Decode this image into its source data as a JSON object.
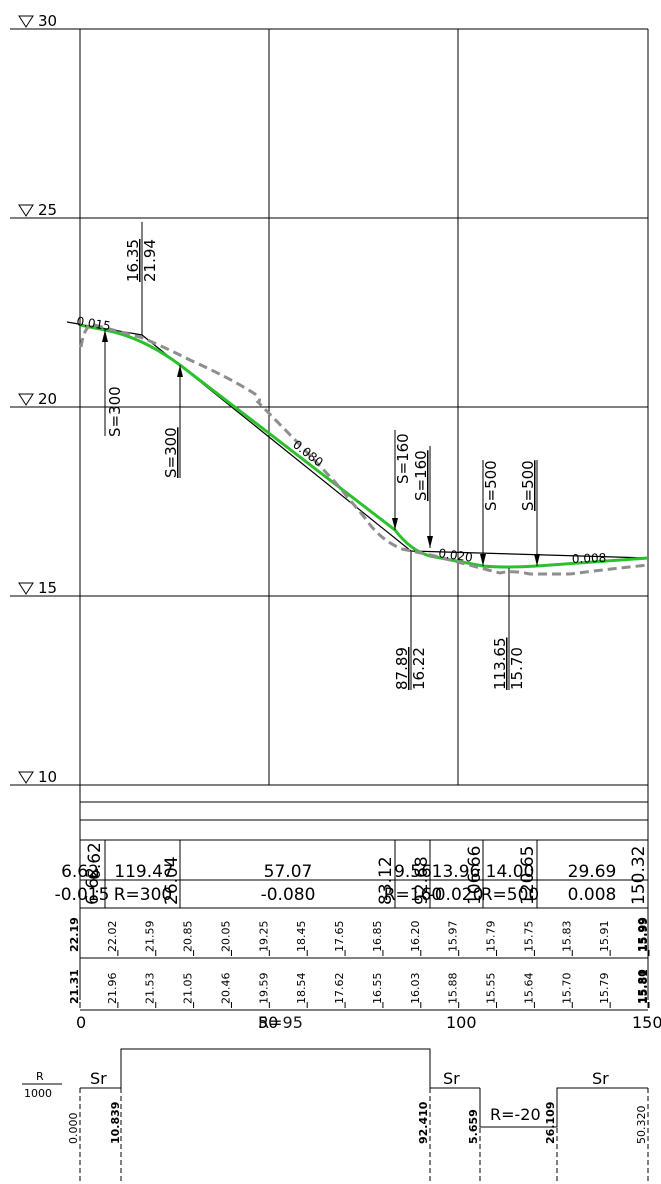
{
  "colors": {
    "design_line": "#2cc12c",
    "ground_line": "#8e8e8e",
    "ink": "#000000",
    "background": "#ffffff"
  },
  "elevation_axis": {
    "labels": [
      "30",
      "25",
      "20",
      "15",
      "10"
    ]
  },
  "grades": [
    {
      "id": "g1",
      "text": "0.015"
    },
    {
      "id": "g2",
      "text": "0.080"
    },
    {
      "id": "g3",
      "text": "0.020"
    },
    {
      "id": "g4",
      "text": "0.008"
    }
  ],
  "vertical_curve_labels": [
    {
      "id": "vc1",
      "text": "S=300"
    },
    {
      "id": "vc2",
      "text": "S=300"
    },
    {
      "id": "vc3",
      "text": "S=160"
    },
    {
      "id": "vc4",
      "text": "S=160"
    },
    {
      "id": "vc5",
      "text": "S=500"
    },
    {
      "id": "vc6",
      "text": "S=500"
    }
  ],
  "pvi_labels": [
    {
      "id": "pvi1",
      "station": "16.35",
      "elevation": "21.94"
    },
    {
      "id": "pvi2",
      "station": "87.89",
      "elevation": "16.22"
    },
    {
      "id": "pvi3",
      "station": "113.65",
      "elevation": "15.70"
    }
  ],
  "band_grades": {
    "vertical_texts": [
      "6.62",
      "6.62",
      "26.04",
      "83.12",
      "92.68",
      "106.66",
      "120.65",
      "150.32"
    ],
    "top_texts": [
      "6.62",
      "119.47",
      "57.07",
      "9.56",
      "13.96",
      "14.00",
      "29.69"
    ],
    "bottom_texts": [
      "-0.015",
      "R=300",
      "-0.080",
      "R=160",
      "-0.020",
      "R=500",
      "0.008"
    ]
  },
  "design_elevations": [
    "22.19",
    "22.02",
    "21.59",
    "20.85",
    "20.05",
    "19.25",
    "18.45",
    "17.65",
    "16.85",
    "16.20",
    "15.97",
    "15.79",
    "15.75",
    "15.83",
    "15.91",
    "15.99",
    "15.99"
  ],
  "ground_elevations": [
    "21.31",
    "21.96",
    "21.53",
    "21.05",
    "20.46",
    "19.59",
    "18.54",
    "17.62",
    "16.55",
    "16.03",
    "15.88",
    "15.55",
    "15.64",
    "15.70",
    "15.79",
    "15.80",
    "15.81"
  ],
  "stations": {
    "labels": [
      "0",
      "50",
      "100",
      "150"
    ],
    "overlap_text": "R=95"
  },
  "horizontal_band": {
    "r_label": "R",
    "r_divisor": "1000",
    "sr_labels": [
      "Sr",
      "Sr",
      "Sr"
    ],
    "r_curve_label": "R=-20",
    "lengths": [
      "0.000",
      "10.839",
      "92.410",
      "5.659",
      "26.109",
      "50.320"
    ]
  }
}
